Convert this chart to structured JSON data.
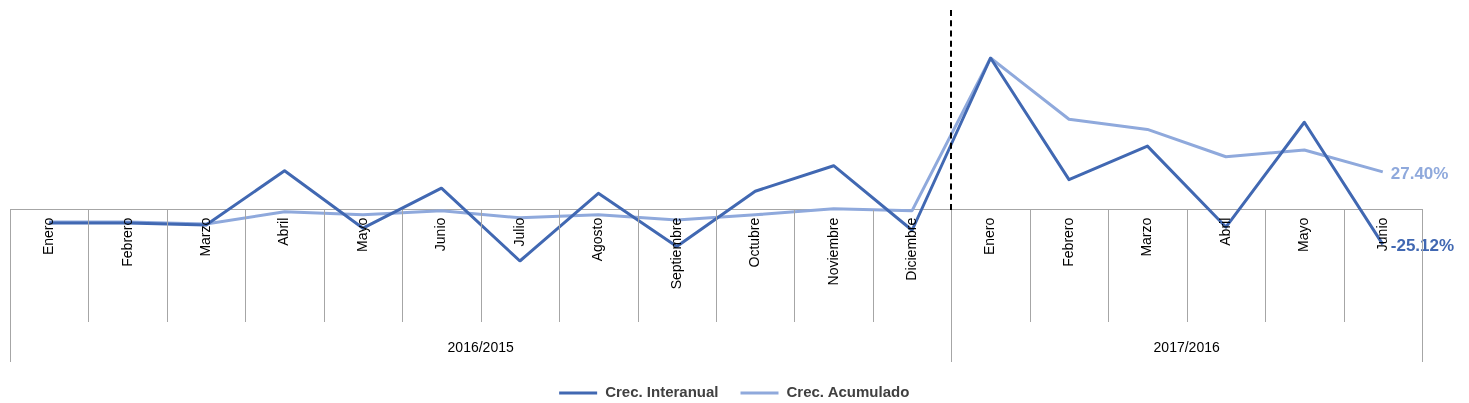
{
  "chart_data": {
    "type": "line",
    "categories": [
      "Enero",
      "Febrero",
      "Marzo",
      "Abril",
      "Mayo",
      "Junio",
      "Julio",
      "Agosto",
      "Septiembre",
      "Octubre",
      "Noviembre",
      "Diciembre",
      "Enero",
      "Febrero",
      "Marzo",
      "Abril",
      "Mayo",
      "Junio"
    ],
    "series": [
      {
        "name": "Crec. Interanual",
        "color": "#4168b2",
        "values": [
          -9.7,
          -9.7,
          -11.1,
          28.2,
          -13.4,
          15.6,
          -37.2,
          11.9,
          -26.7,
          13.4,
          31.9,
          -14.9,
          110,
          21.8,
          46.1,
          -12.6,
          63.4,
          -25.12
        ],
        "value_labels": [
          null,
          null,
          null,
          null,
          null,
          null,
          null,
          null,
          null,
          null,
          null,
          null,
          null,
          null,
          null,
          null,
          null,
          "-25.12%"
        ]
      },
      {
        "name": "Crec. Acumulado",
        "color": "#8fa9dc",
        "values": [
          -8.9,
          -8.9,
          -10.4,
          -1.5,
          -3.7,
          -0.7,
          -5.9,
          -3.7,
          -7.4,
          -3.7,
          0.7,
          -0.7,
          110,
          65.6,
          58.2,
          38.4,
          43.3,
          27.4
        ],
        "value_labels": [
          null,
          null,
          null,
          null,
          null,
          null,
          null,
          null,
          null,
          null,
          null,
          null,
          null,
          null,
          null,
          null,
          null,
          "27.40%"
        ]
      }
    ],
    "tick_labels": "x",
    "annotations": [
      "2016/2015",
      "2017/2016"
    ],
    "legend": "bottom",
    "marker": "none",
    "line_style": "solid"
  }
}
